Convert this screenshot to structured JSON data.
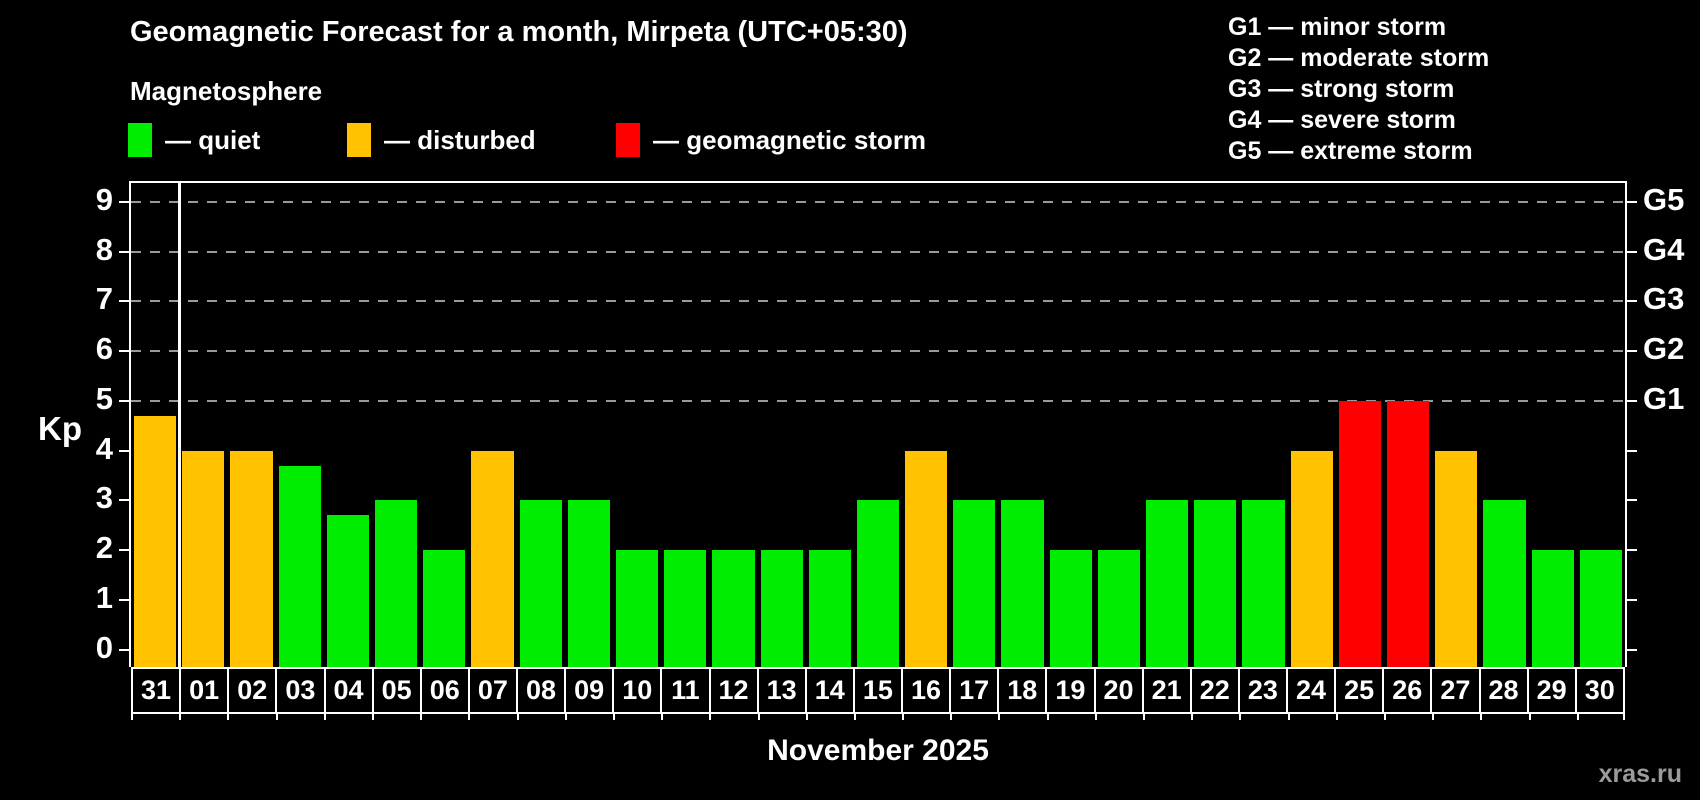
{
  "title": "Geomagnetic Forecast for a month, Mirpeta (UTC+05:30)",
  "subtitle": "Magnetosphere",
  "status_legend": [
    {
      "id": "quiet",
      "label": "— quiet"
    },
    {
      "id": "disturbed",
      "label": "— disturbed"
    },
    {
      "id": "storm",
      "label": "— geomagnetic storm"
    }
  ],
  "g_legend": [
    {
      "code": "G1",
      "desc": "minor storm"
    },
    {
      "code": "G2",
      "desc": "moderate storm"
    },
    {
      "code": "G3",
      "desc": "strong storm"
    },
    {
      "code": "G4",
      "desc": "severe storm"
    },
    {
      "code": "G5",
      "desc": "extreme storm"
    }
  ],
  "axis": {
    "y_label": "Kp",
    "y_ticks": [
      0,
      1,
      2,
      3,
      4,
      5,
      6,
      7,
      8,
      9
    ],
    "g_labels": [
      {
        "value": 5,
        "label": "G1"
      },
      {
        "value": 6,
        "label": "G2"
      },
      {
        "value": 7,
        "label": "G3"
      },
      {
        "value": 8,
        "label": "G4"
      },
      {
        "value": 9,
        "label": "G5"
      }
    ]
  },
  "x_axis_label": "November 2025",
  "watermark": "xras.ru",
  "colors": {
    "quiet": "#00ec00",
    "disturbed": "#ffc100",
    "storm": "#ff0000",
    "background": "#000000",
    "grid": "#9a9a9a",
    "axis": "#ffffff",
    "watermark": "#9b9b9b"
  },
  "chart_data": {
    "type": "bar",
    "title": "Geomagnetic Forecast for a month, Mirpeta (UTC+05:30)",
    "xlabel": "November 2025",
    "ylabel": "Kp",
    "ylim": [
      0,
      9.4
    ],
    "grid": "horizontal dashed lines at Kp 5,6,7,8,9 (G1..G5)",
    "legend_position": "top",
    "categories": [
      "31",
      "01",
      "02",
      "03",
      "04",
      "05",
      "06",
      "07",
      "08",
      "09",
      "10",
      "11",
      "12",
      "13",
      "14",
      "15",
      "16",
      "17",
      "18",
      "19",
      "20",
      "21",
      "22",
      "23",
      "24",
      "25",
      "26",
      "27",
      "28",
      "29",
      "30"
    ],
    "values": [
      4.7,
      4,
      4,
      3.7,
      2.7,
      3,
      2,
      4,
      3,
      3,
      2,
      2,
      2,
      2,
      2,
      3,
      4,
      3,
      3,
      2,
      2,
      3,
      3,
      3,
      4,
      5,
      5,
      4,
      3,
      2,
      2
    ],
    "statuses": [
      "disturbed",
      "disturbed",
      "disturbed",
      "quiet",
      "quiet",
      "quiet",
      "quiet",
      "disturbed",
      "quiet",
      "quiet",
      "quiet",
      "quiet",
      "quiet",
      "quiet",
      "quiet",
      "quiet",
      "disturbed",
      "quiet",
      "quiet",
      "quiet",
      "quiet",
      "quiet",
      "quiet",
      "quiet",
      "disturbed",
      "storm",
      "storm",
      "disturbed",
      "quiet",
      "quiet",
      "quiet"
    ],
    "month_boundary_after_index": 0,
    "thresholds": {
      "disturbed_min_kp": 4,
      "storm_min_kp": 5
    }
  }
}
